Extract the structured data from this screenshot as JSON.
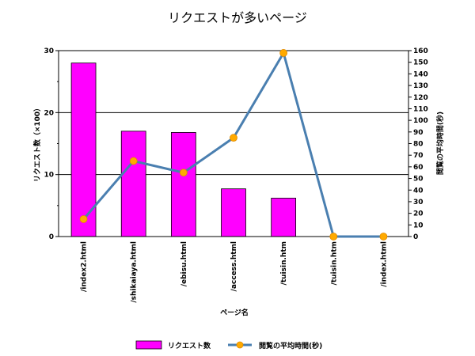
{
  "chart_data": {
    "type": "bar",
    "title": "リクエストが多いページ",
    "xlabel": "ページ名",
    "ylabel_left": "リクエスト数（×100）",
    "ylabel_right": "閲覧の平均時間(秒)",
    "categories": [
      "/index2.html",
      "/shikaiaya.html",
      "/ebisu.html",
      "/access.html",
      "/tuisin.htm",
      "/tuisin.htm",
      "/index.html"
    ],
    "ylim_left": [
      0,
      30
    ],
    "yticks_left": [
      0,
      10,
      20,
      30
    ],
    "ylim_right": [
      0,
      160
    ],
    "yticks_right": [
      0,
      10,
      20,
      30,
      40,
      50,
      60,
      70,
      80,
      90,
      100,
      110,
      120,
      130,
      140,
      150,
      160
    ],
    "grid": true,
    "legend_placement": "bottom",
    "series": [
      {
        "name": "リクエスト数",
        "type": "bar",
        "axis": "left",
        "color": "#ff00ff",
        "values": [
          28.0,
          17.0,
          16.8,
          7.7,
          6.2,
          0,
          0
        ]
      },
      {
        "name": "閲覧の平均時間(秒)",
        "type": "line",
        "axis": "right",
        "color": "#4a7fb0",
        "marker_color": "#ffaa00",
        "values": [
          15,
          65,
          55,
          85,
          158,
          0,
          0
        ]
      }
    ]
  }
}
